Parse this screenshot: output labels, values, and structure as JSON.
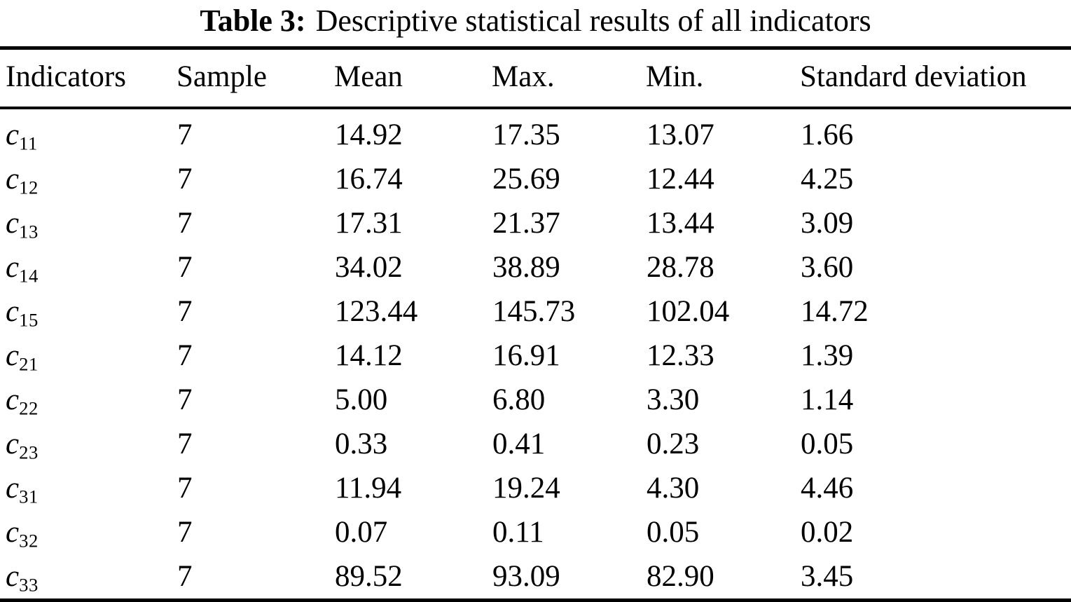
{
  "caption": {
    "label": "Table 3:",
    "text": "Descriptive statistical results of all indicators"
  },
  "table": {
    "headers": [
      "Indicators",
      "Sample",
      "Mean",
      "Max.",
      "Min.",
      "Standard deviation"
    ],
    "rows": [
      {
        "indicator_base": "c",
        "indicator_sub": "11",
        "sample": "7",
        "mean": "14.92",
        "max": "17.35",
        "min": "13.07",
        "std": "1.66"
      },
      {
        "indicator_base": "c",
        "indicator_sub": "12",
        "sample": "7",
        "mean": "16.74",
        "max": "25.69",
        "min": "12.44",
        "std": "4.25"
      },
      {
        "indicator_base": "c",
        "indicator_sub": "13",
        "sample": "7",
        "mean": "17.31",
        "max": "21.37",
        "min": "13.44",
        "std": "3.09"
      },
      {
        "indicator_base": "c",
        "indicator_sub": "14",
        "sample": "7",
        "mean": "34.02",
        "max": "38.89",
        "min": "28.78",
        "std": "3.60"
      },
      {
        "indicator_base": "c",
        "indicator_sub": "15",
        "sample": "7",
        "mean": "123.44",
        "max": "145.73",
        "min": "102.04",
        "std": "14.72"
      },
      {
        "indicator_base": "c",
        "indicator_sub": "21",
        "sample": "7",
        "mean": "14.12",
        "max": "16.91",
        "min": "12.33",
        "std": "1.39"
      },
      {
        "indicator_base": "c",
        "indicator_sub": "22",
        "sample": "7",
        "mean": "5.00",
        "max": "6.80",
        "min": "3.30",
        "std": "1.14"
      },
      {
        "indicator_base": "c",
        "indicator_sub": "23",
        "sample": "7",
        "mean": "0.33",
        "max": "0.41",
        "min": "0.23",
        "std": "0.05"
      },
      {
        "indicator_base": "c",
        "indicator_sub": "31",
        "sample": "7",
        "mean": "11.94",
        "max": "19.24",
        "min": "4.30",
        "std": "4.46"
      },
      {
        "indicator_base": "c",
        "indicator_sub": "32",
        "sample": "7",
        "mean": "0.07",
        "max": "0.11",
        "min": "0.05",
        "std": "0.02"
      },
      {
        "indicator_base": "c",
        "indicator_sub": "33",
        "sample": "7",
        "mean": "89.52",
        "max": "93.09",
        "min": "82.90",
        "std": "3.45"
      }
    ]
  },
  "colors": {
    "text": "#000000",
    "background": "#ffffff",
    "rule": "#000000"
  }
}
